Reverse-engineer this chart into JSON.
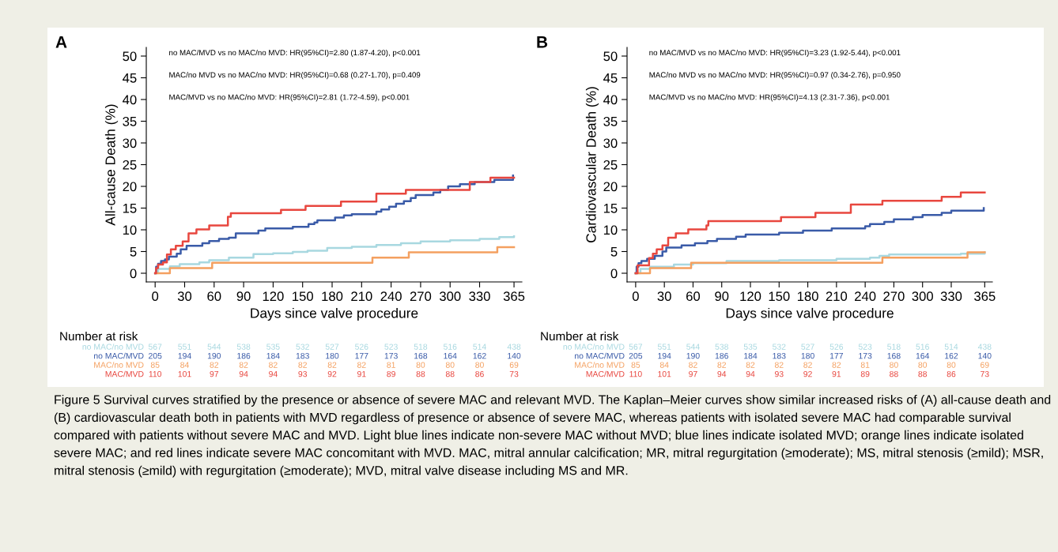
{
  "chart_data": [
    {
      "type": "step",
      "title": "A",
      "xlabel": "Days since valve procedure",
      "ylabel": "All-cause Death (%)",
      "xlim": [
        -9,
        373
      ],
      "ylim": [
        -2,
        52
      ],
      "xticks": [
        0,
        30,
        60,
        90,
        120,
        150,
        180,
        210,
        240,
        270,
        300,
        330,
        365
      ],
      "yticks": [
        0,
        5,
        10,
        15,
        20,
        25,
        30,
        35,
        40,
        45,
        50
      ],
      "series": [
        {
          "name": "no MAC/no MVD",
          "color": "#a8d8e0",
          "x": [
            0,
            3,
            15,
            25,
            45,
            55,
            75,
            100,
            120,
            140,
            155,
            175,
            200,
            225,
            250,
            270,
            300,
            330,
            350,
            365
          ],
          "values": [
            0,
            1,
            1.6,
            2.1,
            2.5,
            3.0,
            3.6,
            4.4,
            4.6,
            4.9,
            5.2,
            5.8,
            6.1,
            6.5,
            6.9,
            7.3,
            7.6,
            7.9,
            8.3,
            8.5
          ]
        },
        {
          "name": "no MAC/MVD",
          "color": "#3a5ba8",
          "x": [
            0,
            1,
            3,
            6,
            10,
            14,
            22,
            26,
            32,
            48,
            55,
            65,
            75,
            82,
            105,
            112,
            140,
            156,
            162,
            165,
            183,
            192,
            200,
            225,
            230,
            238,
            245,
            253,
            260,
            265,
            283,
            290,
            298,
            310,
            325,
            345,
            364
          ],
          "values": [
            0,
            1.5,
            2.2,
            2.8,
            3.2,
            3.8,
            4.5,
            5.5,
            6.3,
            6.9,
            7.4,
            7.9,
            8.2,
            9.2,
            9.8,
            10.3,
            10.7,
            11.3,
            11.7,
            12.2,
            12.8,
            13.3,
            13.6,
            14.2,
            14.7,
            15.3,
            16.0,
            16.6,
            17.3,
            18.0,
            18.6,
            19.2,
            20.0,
            20.5,
            21.0,
            21.5,
            22.5
          ]
        },
        {
          "name": "MAC/no MVD",
          "color": "#f4a060",
          "x": [
            0,
            15,
            58,
            221,
            258,
            348,
            365
          ],
          "values": [
            0,
            1.2,
            2.4,
            3.6,
            4.8,
            6.0,
            6.0
          ]
        },
        {
          "name": "MAC/MVD",
          "color": "#e8473f",
          "x": [
            0,
            1,
            3,
            8,
            12,
            16,
            21,
            28,
            34,
            42,
            55,
            74,
            77,
            128,
            153,
            189,
            225,
            255,
            320,
            341,
            365
          ],
          "values": [
            0,
            1.2,
            2,
            2.5,
            4.3,
            5.5,
            6.3,
            7.3,
            9.2,
            10.1,
            11,
            13,
            13.8,
            14.6,
            15.5,
            16.5,
            18.3,
            19.2,
            21.0,
            22.0,
            22.0
          ]
        }
      ],
      "annotations": [
        "no MAC/MVD vs no MAC/no MVD: HR(95%CI)=2.80 (1.87-4.20), p<0.001",
        "MAC/no MVD vs no MAC/no MVD: HR(95%CI)=0.68 (0.27-1.70), p=0.409",
        "MAC/MVD vs no MAC/no MVD: HR(95%CI)=2.81 (1.72-4.59), p<0.001",
        "Number at risk",
        "567",
        "551",
        "544",
        "538",
        "535",
        "532",
        "527",
        "526",
        "523",
        "518",
        "516",
        "514",
        "438",
        "205",
        "194",
        "190",
        "186",
        "184",
        "183",
        "180",
        "177",
        "173",
        "168",
        "164",
        "162",
        "140",
        "85",
        "84",
        "82",
        "82",
        "82",
        "82",
        "82",
        "82",
        "81",
        "80",
        "80",
        "80",
        "69",
        "110",
        "101",
        "97",
        "94",
        "94",
        "93",
        "92",
        "91",
        "89",
        "88",
        "88",
        "86",
        "73",
        "Figure 5 Survival curves stratified by the presence or absence of severe MAC and relevant MVD. The Kaplan–Meier curves show similar increased risks of (A) all-cause death and (B) cardiovascular death both in patients with MVD regardless of presence or absence of severe MAC, whereas patients with isolated severe MAC had comparable survival compared with patients without severe MAC and MVD. Light blue lines indicate non-severe MAC without MVD; blue lines indicate isolated MVD; orange lines indicate isolated severe MAC; and red lines indicate severe MAC concomitant with MVD. MAC, mitral annular calcification; MR, mitral regurgitation (≥moderate); MS, mitral stenosis (≥mild); MSR, mitral stenosis (≥mild) with regurgitation (≥moderate); MVD, mitral valve disease including MS and MR."
      ]
    },
    {
      "type": "step",
      "title": "B",
      "xlabel": "Days since valve procedure",
      "ylabel": "Cardiovascular Death (%)",
      "xlim": [
        -9,
        373
      ],
      "ylim": [
        -2,
        52
      ],
      "xticks": [
        0,
        30,
        60,
        90,
        120,
        150,
        180,
        210,
        240,
        270,
        300,
        330,
        365
      ],
      "yticks": [
        0,
        5,
        10,
        15,
        20,
        25,
        30,
        35,
        40,
        45,
        50
      ],
      "series": [
        {
          "name": "no MAC/no MVD",
          "color": "#a8d8e0",
          "x": [
            0,
            5,
            15,
            40,
            60,
            95,
            150,
            210,
            245,
            255,
            265,
            340,
            365
          ],
          "values": [
            0,
            1,
            1.5,
            2.0,
            2.3,
            2.8,
            3.0,
            3.3,
            3.6,
            4.0,
            4.3,
            4.5,
            4.8
          ]
        },
        {
          "name": "no MAC/MVD",
          "color": "#3a5ba8",
          "x": [
            0,
            1,
            3,
            6,
            12,
            20,
            28,
            32,
            48,
            62,
            75,
            85,
            105,
            115,
            150,
            175,
            205,
            240,
            245,
            260,
            270,
            290,
            300,
            320,
            330,
            364
          ],
          "values": [
            0,
            1.5,
            2.3,
            2.8,
            3.3,
            4.0,
            5.0,
            5.9,
            6.4,
            6.9,
            7.4,
            7.9,
            8.4,
            8.9,
            9.3,
            9.8,
            10.3,
            10.8,
            11.3,
            11.8,
            12.4,
            12.9,
            13.4,
            13.9,
            14.4,
            15.0
          ]
        },
        {
          "name": "MAC/no MVD",
          "color": "#f4a060",
          "x": [
            0,
            15,
            58,
            258,
            347,
            365
          ],
          "values": [
            0,
            1.2,
            2.4,
            3.6,
            4.8,
            4.8
          ]
        },
        {
          "name": "MAC/MVD",
          "color": "#e8473f",
          "x": [
            0,
            2,
            14,
            18,
            22,
            28,
            34,
            42,
            55,
            74,
            76,
            152,
            188,
            225,
            258,
            320,
            340,
            365
          ],
          "values": [
            0,
            1.8,
            3.5,
            4.5,
            5.5,
            6.4,
            8.2,
            9.2,
            10.1,
            11.0,
            12.0,
            12.9,
            13.9,
            15.8,
            16.7,
            17.6,
            18.6,
            18.6
          ]
        }
      ],
      "annotations": [
        "no MAC/MVD vs no MAC/no MVD: HR(95%CI)=3.23 (1.92-5.44), p<0.001",
        "MAC/no MVD vs no MAC/no MVD: HR(95%CI)=0.97 (0.34-2.76), p=0.950",
        "MAC/MVD vs no MAC/no MVD: HR(95%CI)=4.13 (2.31-7.36), p<0.001",
        "Number at risk",
        "567",
        "551",
        "544",
        "538",
        "535",
        "532",
        "527",
        "526",
        "523",
        "518",
        "516",
        "514",
        "438",
        "205",
        "194",
        "190",
        "186",
        "184",
        "183",
        "180",
        "177",
        "173",
        "168",
        "164",
        "162",
        "140",
        "85",
        "84",
        "82",
        "82",
        "82",
        "82",
        "82",
        "82",
        "81",
        "80",
        "80",
        "80",
        "69",
        "110",
        "101",
        "97",
        "94",
        "94",
        "93",
        "92",
        "91",
        "89",
        "88",
        "88",
        "86",
        "73"
      ]
    }
  ]
}
